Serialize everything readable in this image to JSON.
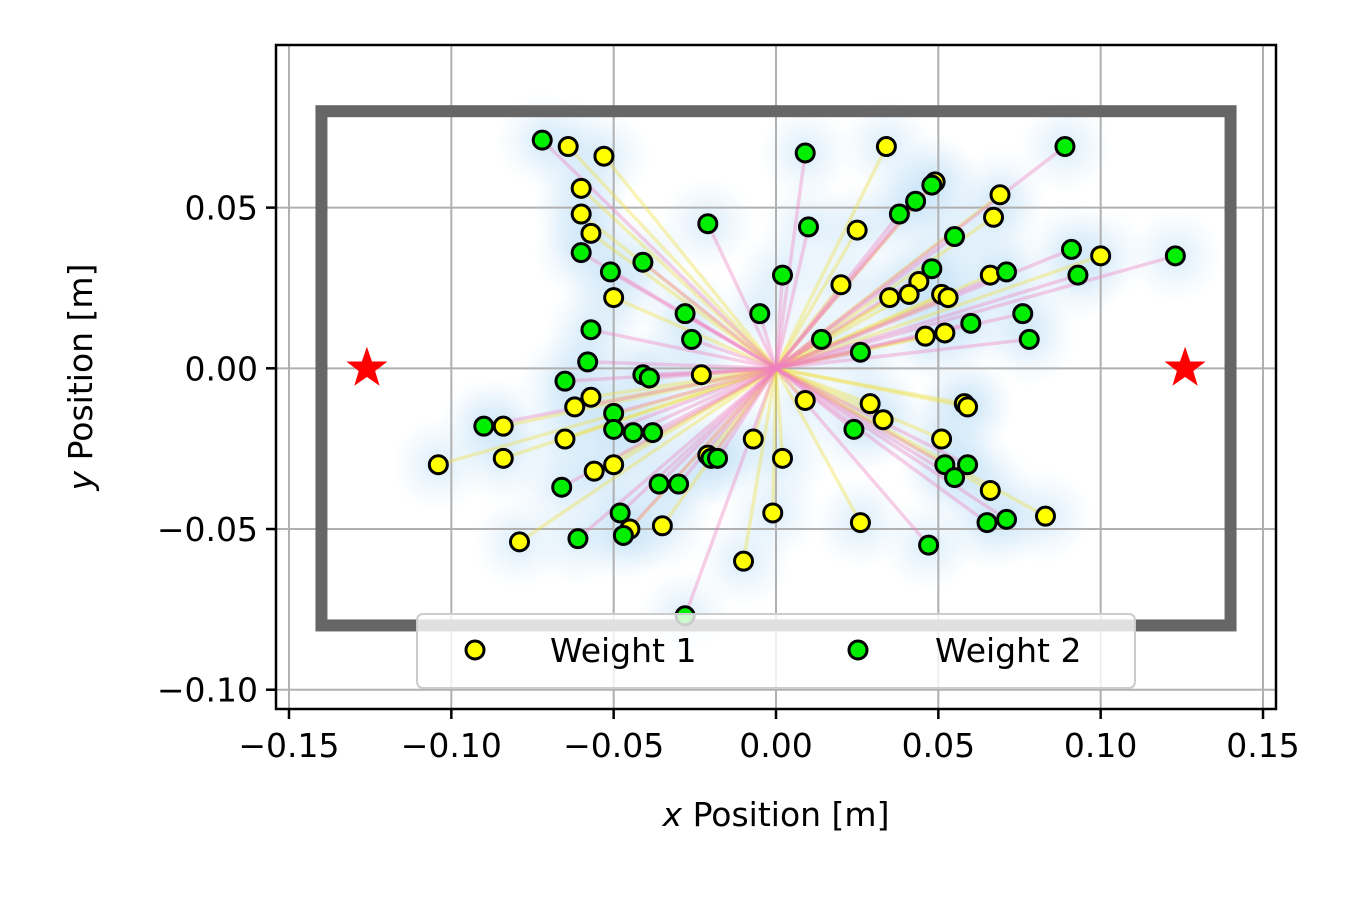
{
  "chart_data": {
    "type": "scatter",
    "xlabel": {
      "var": "x",
      "rest": " Position [m]"
    },
    "ylabel": {
      "var": "y",
      "rest": " Position [m]"
    },
    "xlim": [
      -0.154,
      0.154
    ],
    "ylim": [
      -0.106,
      0.1006
    ],
    "xticks": [
      -0.15,
      -0.1,
      -0.05,
      0.0,
      0.05,
      0.1,
      0.15
    ],
    "xtick_labels": [
      "−0.15",
      "−0.10",
      "−0.05",
      "0.00",
      "0.05",
      "0.10",
      "0.15"
    ],
    "yticks": [
      0.05,
      0.0,
      -0.05,
      -0.1
    ],
    "ytick_labels": [
      "0.05",
      "0.00",
      "−0.05",
      "−0.10"
    ],
    "grid": true,
    "legend_position": "lower center",
    "boundary": {
      "x": [
        -0.14,
        0.14
      ],
      "y": [
        -0.08,
        0.08
      ],
      "color": "#666666"
    },
    "markers": [
      {
        "x": -0.126,
        "y": 0.0,
        "color": "#ff0000",
        "shape": "star"
      },
      {
        "x": 0.126,
        "y": 0.0,
        "color": "#ff0000",
        "shape": "star"
      }
    ],
    "series": [
      {
        "name": "Weight 1",
        "color": "#ffff00",
        "line_color": "#f0e040",
        "points": [
          [
            -0.064,
            0.069
          ],
          [
            -0.053,
            0.066
          ],
          [
            -0.06,
            0.056
          ],
          [
            -0.06,
            0.048
          ],
          [
            -0.057,
            0.042
          ],
          [
            -0.05,
            0.022
          ],
          [
            0.034,
            0.069
          ],
          [
            0.049,
            0.058
          ],
          [
            0.069,
            0.054
          ],
          [
            0.067,
            0.047
          ],
          [
            0.025,
            0.043
          ],
          [
            0.1,
            0.035
          ],
          [
            0.066,
            0.029
          ],
          [
            0.02,
            0.026
          ],
          [
            0.044,
            0.027
          ],
          [
            0.035,
            0.022
          ],
          [
            0.041,
            0.023
          ],
          [
            0.051,
            0.023
          ],
          [
            0.053,
            0.022
          ],
          [
            0.052,
            0.011
          ],
          [
            0.046,
            0.01
          ],
          [
            -0.023,
            -0.002
          ],
          [
            -0.057,
            -0.009
          ],
          [
            -0.062,
            -0.012
          ],
          [
            0.009,
            -0.01
          ],
          [
            0.029,
            -0.011
          ],
          [
            0.033,
            -0.016
          ],
          [
            0.058,
            -0.011
          ],
          [
            0.059,
            -0.012
          ],
          [
            -0.084,
            -0.018
          ],
          [
            -0.065,
            -0.022
          ],
          [
            -0.007,
            -0.022
          ],
          [
            0.051,
            -0.022
          ],
          [
            -0.104,
            -0.03
          ],
          [
            -0.084,
            -0.028
          ],
          [
            -0.05,
            -0.03
          ],
          [
            -0.056,
            -0.032
          ],
          [
            0.002,
            -0.028
          ],
          [
            0.066,
            -0.038
          ],
          [
            -0.045,
            -0.05
          ],
          [
            -0.035,
            -0.049
          ],
          [
            -0.079,
            -0.054
          ],
          [
            -0.01,
            -0.06
          ],
          [
            -0.001,
            -0.045
          ],
          [
            0.026,
            -0.048
          ],
          [
            0.083,
            -0.046
          ],
          [
            -0.021,
            -0.027
          ]
        ]
      },
      {
        "name": "Weight 2",
        "color": "#00ee00",
        "line_color": "#f080c0",
        "points": [
          [
            -0.072,
            0.071
          ],
          [
            0.009,
            0.067
          ],
          [
            0.089,
            0.069
          ],
          [
            0.048,
            0.057
          ],
          [
            0.043,
            0.052
          ],
          [
            0.038,
            0.048
          ],
          [
            -0.021,
            0.045
          ],
          [
            0.01,
            0.044
          ],
          [
            0.055,
            0.041
          ],
          [
            -0.06,
            0.036
          ],
          [
            -0.041,
            0.033
          ],
          [
            0.091,
            0.037
          ],
          [
            0.123,
            0.035
          ],
          [
            0.093,
            0.029
          ],
          [
            -0.051,
            0.03
          ],
          [
            0.002,
            0.029
          ],
          [
            0.071,
            0.03
          ],
          [
            0.048,
            0.031
          ],
          [
            -0.028,
            0.017
          ],
          [
            -0.005,
            0.017
          ],
          [
            0.076,
            0.017
          ],
          [
            0.06,
            0.014
          ],
          [
            -0.057,
            0.012
          ],
          [
            -0.026,
            0.009
          ],
          [
            0.014,
            0.009
          ],
          [
            0.078,
            0.009
          ],
          [
            0.026,
            0.005
          ],
          [
            -0.058,
            0.002
          ],
          [
            -0.041,
            -0.002
          ],
          [
            -0.039,
            -0.003
          ],
          [
            -0.065,
            -0.004
          ],
          [
            -0.05,
            -0.014
          ],
          [
            -0.09,
            -0.018
          ],
          [
            0.024,
            -0.019
          ],
          [
            -0.05,
            -0.019
          ],
          [
            -0.044,
            -0.02
          ],
          [
            -0.038,
            -0.02
          ],
          [
            -0.02,
            -0.028
          ],
          [
            -0.018,
            -0.028
          ],
          [
            0.052,
            -0.03
          ],
          [
            0.059,
            -0.03
          ],
          [
            0.055,
            -0.034
          ],
          [
            -0.066,
            -0.037
          ],
          [
            -0.036,
            -0.036
          ],
          [
            -0.03,
            -0.036
          ],
          [
            -0.048,
            -0.045
          ],
          [
            -0.047,
            -0.052
          ],
          [
            -0.061,
            -0.053
          ],
          [
            0.065,
            -0.048
          ],
          [
            0.071,
            -0.047
          ],
          [
            0.047,
            -0.055
          ],
          [
            -0.028,
            -0.077
          ]
        ]
      }
    ]
  }
}
